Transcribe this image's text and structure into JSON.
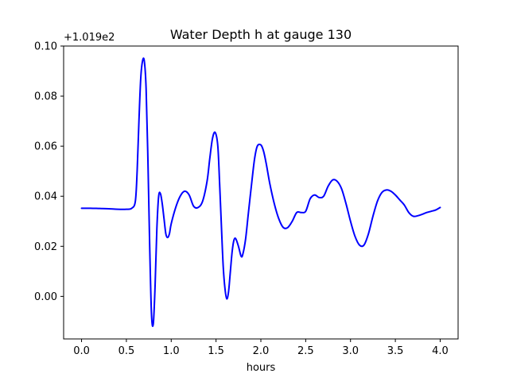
{
  "chart_data": {
    "type": "line",
    "title": "Water Depth h at gauge 130",
    "xlabel": "hours",
    "ylabel": "",
    "y_offset_label": "+1.019e2",
    "xlim": [
      -0.2,
      4.2
    ],
    "ylim": [
      -0.017,
      0.1
    ],
    "x_ticks": [
      0.0,
      0.5,
      1.0,
      1.5,
      2.0,
      2.5,
      3.0,
      3.5,
      4.0
    ],
    "x_tick_labels": [
      "0.0",
      "0.5",
      "1.0",
      "1.5",
      "2.0",
      "2.5",
      "3.0",
      "3.5",
      "4.0"
    ],
    "y_ticks": [
      0.0,
      0.02,
      0.04,
      0.06,
      0.08,
      0.1
    ],
    "y_tick_labels": [
      "0.00",
      "0.02",
      "0.04",
      "0.06",
      "0.08",
      "0.10"
    ],
    "grid": false,
    "line_color": "#0000ff",
    "series": [
      {
        "x": [
          0.0,
          0.1,
          0.2,
          0.3,
          0.4,
          0.5,
          0.56,
          0.6,
          0.62,
          0.64,
          0.66,
          0.68,
          0.7,
          0.72,
          0.74,
          0.76,
          0.78,
          0.8,
          0.82,
          0.84,
          0.86,
          0.88,
          0.9,
          0.92,
          0.94,
          0.96,
          0.98,
          1.0,
          1.05,
          1.1,
          1.15,
          1.2,
          1.25,
          1.3,
          1.35,
          1.4,
          1.43,
          1.46,
          1.49,
          1.52,
          1.54,
          1.56,
          1.58,
          1.6,
          1.62,
          1.64,
          1.66,
          1.68,
          1.7,
          1.72,
          1.75,
          1.78,
          1.8,
          1.83,
          1.86,
          1.9,
          1.93,
          1.96,
          2.0,
          2.03,
          2.06,
          2.1,
          2.15,
          2.2,
          2.25,
          2.3,
          2.35,
          2.4,
          2.45,
          2.5,
          2.55,
          2.6,
          2.65,
          2.7,
          2.75,
          2.8,
          2.85,
          2.9,
          2.95,
          3.0,
          3.05,
          3.1,
          3.15,
          3.2,
          3.25,
          3.3,
          3.35,
          3.4,
          3.45,
          3.5,
          3.55,
          3.6,
          3.65,
          3.7,
          3.75,
          3.8,
          3.85,
          3.9,
          3.95,
          4.0
        ],
        "y": [
          0.0352,
          0.0352,
          0.0351,
          0.035,
          0.0348,
          0.0348,
          0.0352,
          0.038,
          0.05,
          0.07,
          0.087,
          0.094,
          0.094,
          0.083,
          0.055,
          0.02,
          -0.007,
          -0.011,
          0.004,
          0.027,
          0.04,
          0.041,
          0.037,
          0.031,
          0.025,
          0.0235,
          0.025,
          0.029,
          0.0355,
          0.04,
          0.042,
          0.0405,
          0.036,
          0.0355,
          0.038,
          0.046,
          0.055,
          0.063,
          0.0655,
          0.06,
          0.045,
          0.028,
          0.012,
          0.003,
          -0.001,
          0.002,
          0.01,
          0.018,
          0.0225,
          0.023,
          0.02,
          0.016,
          0.017,
          0.023,
          0.033,
          0.046,
          0.055,
          0.06,
          0.0605,
          0.058,
          0.053,
          0.045,
          0.037,
          0.031,
          0.0275,
          0.0275,
          0.03,
          0.0335,
          0.0335,
          0.034,
          0.039,
          0.0405,
          0.0395,
          0.04,
          0.044,
          0.0465,
          0.046,
          0.043,
          0.037,
          0.03,
          0.024,
          0.0205,
          0.0205,
          0.025,
          0.032,
          0.038,
          0.0415,
          0.0425,
          0.042,
          0.0405,
          0.0385,
          0.0365,
          0.0335,
          0.032,
          0.0322,
          0.0328,
          0.0335,
          0.034,
          0.0345,
          0.0355
        ]
      }
    ]
  }
}
